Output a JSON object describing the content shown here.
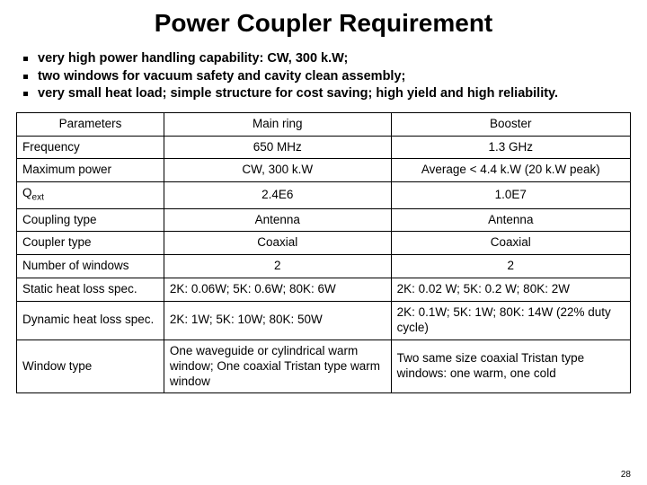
{
  "title": "Power Coupler Requirement",
  "bullets": [
    "very high power handling capability: CW, 300 k.W;",
    "two windows for vacuum safety and cavity clean assembly;",
    "very small heat load; simple structure for cost saving; high yield and high reliability."
  ],
  "table": {
    "header": {
      "c1": "Parameters",
      "c2": "Main ring",
      "c3": "Booster"
    },
    "rows": [
      {
        "p": "Frequency",
        "m": "650 MHz",
        "b": "1.3 GHz",
        "align": "center"
      },
      {
        "p": "Maximum power",
        "m": "CW, 300 k.W",
        "b": "Average < 4.4 k.W (20 k.W peak)",
        "align": "center"
      },
      {
        "p": "Q_ext",
        "m": "2.4E6",
        "b": "1.0E7",
        "align": "center",
        "qext": true
      },
      {
        "p": "Coupling type",
        "m": "Antenna",
        "b": "Antenna",
        "align": "center"
      },
      {
        "p": "Coupler type",
        "m": "Coaxial",
        "b": "Coaxial",
        "align": "center"
      },
      {
        "p": "Number of windows",
        "m": "2",
        "b": "2",
        "align": "center"
      },
      {
        "p": "Static heat loss spec.",
        "m": "2K: 0.06W; 5K: 0.6W; 80K: 6W",
        "b": "2K: 0.02 W; 5K: 0.2 W; 80K: 2W",
        "align": "left"
      },
      {
        "p": "Dynamic heat loss spec.",
        "m": "2K: 1W; 5K: 10W; 80K: 50W",
        "b": "2K: 0.1W; 5K: 1W; 80K: 14W (22% duty cycle)",
        "align": "left"
      },
      {
        "p": "Window type",
        "m": "One waveguide or cylindrical warm window; One coaxial Tristan type warm window",
        "b": "Two same size coaxial Tristan type windows: one warm, one cold",
        "align": "left"
      }
    ]
  },
  "pagenum": "28",
  "colors": {
    "text": "#000000",
    "bg": "#ffffff",
    "border": "#000000"
  }
}
